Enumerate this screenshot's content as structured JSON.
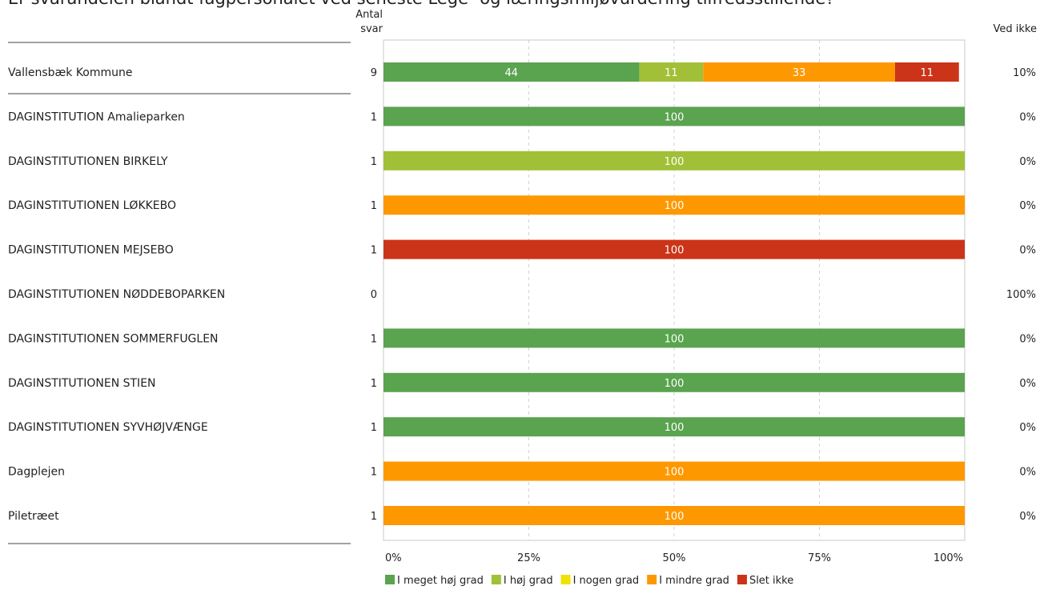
{
  "chart_data": {
    "type": "bar",
    "orientation": "horizontal",
    "stacked": true,
    "title": "Er svarandelen blandt fagpersonalet ved seneste Lege- og læringsmiljøvurdering tilfredsstillende?",
    "count_header_line1": "Antal",
    "count_header_line2": "svar",
    "right_header": "Ved ikke",
    "xlim": [
      0,
      100
    ],
    "x_ticks": [
      "0%",
      "25%",
      "50%",
      "75%",
      "100%"
    ],
    "grid": true,
    "legend_position": "bottom",
    "series": [
      {
        "name": "I meget høj grad",
        "color": "#5aa34f"
      },
      {
        "name": "I høj grad",
        "color": "#a1c037"
      },
      {
        "name": "I nogen grad",
        "color": "#f0e100"
      },
      {
        "name": "I mindre grad",
        "color": "#fe9800"
      },
      {
        "name": "Slet ikke",
        "color": "#cb3418"
      }
    ],
    "categories": [
      "Vallensbæk Kommune",
      "DAGINSTITUTION Amalieparken",
      "DAGINSTITUTIONEN BIRKELY",
      "DAGINSTITUTIONEN LØKKEBO",
      "DAGINSTITUTIONEN MEJSEBO",
      "DAGINSTITUTIONEN NØDDEBOPARKEN",
      "DAGINSTITUTIONEN SOMMERFUGLEN",
      "DAGINSTITUTIONEN STIEN",
      "DAGINSTITUTIONEN SYVHØJVÆNGE",
      "Dagplejen",
      "Piletræet"
    ],
    "counts": [
      "9",
      "1",
      "1",
      "1",
      "1",
      "0",
      "1",
      "1",
      "1",
      "1",
      "1"
    ],
    "ved_ikke": [
      "10%",
      "0%",
      "0%",
      "0%",
      "0%",
      "100%",
      "0%",
      "0%",
      "0%",
      "0%",
      "0%"
    ],
    "values": [
      [
        44,
        11,
        0,
        33,
        11
      ],
      [
        100,
        0,
        0,
        0,
        0
      ],
      [
        0,
        100,
        0,
        0,
        0
      ],
      [
        0,
        0,
        0,
        100,
        0
      ],
      [
        0,
        0,
        0,
        0,
        100
      ],
      [
        0,
        0,
        0,
        0,
        0
      ],
      [
        100,
        0,
        0,
        0,
        0
      ],
      [
        100,
        0,
        0,
        0,
        0
      ],
      [
        100,
        0,
        0,
        0,
        0
      ],
      [
        0,
        0,
        0,
        100,
        0
      ],
      [
        0,
        0,
        0,
        100,
        0
      ]
    ]
  }
}
